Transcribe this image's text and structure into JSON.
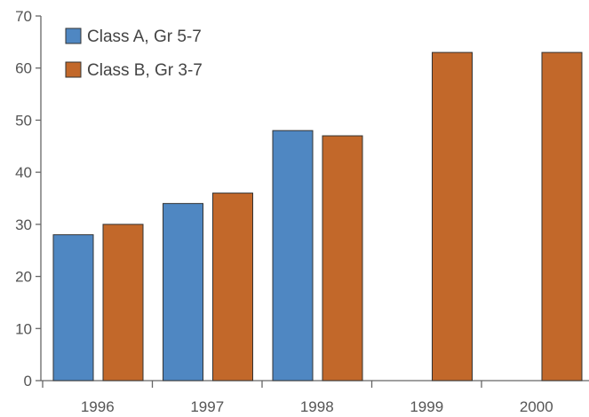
{
  "chart_data": {
    "type": "bar",
    "title": "",
    "xlabel": "",
    "ylabel": "",
    "categories": [
      "1996",
      "1997",
      "1998",
      "1999",
      "2000"
    ],
    "series": [
      {
        "name": "Class A, Gr 5-7",
        "color": "#4f87c2",
        "values": [
          28,
          34,
          48,
          null,
          null
        ]
      },
      {
        "name": "Class B, Gr 3-7",
        "color": "#c2682a",
        "values": [
          30,
          36,
          47,
          63,
          63
        ]
      }
    ],
    "ylim": [
      0,
      70
    ],
    "yticks": [
      0,
      10,
      20,
      30,
      40,
      50,
      60,
      70
    ],
    "grid": false,
    "legend_position": "top-left"
  }
}
